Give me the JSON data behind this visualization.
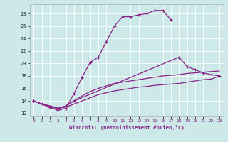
{
  "xlabel": "Windchill (Refroidissement éolien,°C)",
  "bg_color": "#cce8e8",
  "line_color": "#882288",
  "xlim": [
    -0.5,
    23.5
  ],
  "ylim": [
    11.5,
    29.5
  ],
  "yticks": [
    12,
    14,
    16,
    18,
    20,
    22,
    24,
    26,
    28
  ],
  "xticks": [
    0,
    1,
    2,
    3,
    4,
    5,
    6,
    7,
    8,
    9,
    10,
    11,
    12,
    13,
    14,
    15,
    16,
    17,
    18,
    19,
    20,
    21,
    22,
    23
  ],
  "s1x": [
    0,
    1,
    2,
    3,
    4,
    5,
    6,
    7,
    8,
    9,
    10,
    11,
    12,
    13,
    14,
    15,
    16,
    17
  ],
  "s1y": [
    14.0,
    13.5,
    13.0,
    12.5,
    12.8,
    15.2,
    17.8,
    20.2,
    21.0,
    23.5,
    26.0,
    27.5,
    27.5,
    27.8,
    28.0,
    28.5,
    28.5,
    27.0
  ],
  "s2x": [
    0,
    2,
    3,
    4,
    5,
    18,
    19,
    20,
    21,
    22,
    23
  ],
  "s2y": [
    14.0,
    13.0,
    12.8,
    13.2,
    14.0,
    21.0,
    19.5,
    19.0,
    18.5,
    18.2,
    18.0
  ],
  "s3x": [
    0,
    1,
    2,
    3,
    4,
    5,
    6,
    7,
    8,
    9,
    10,
    11,
    12,
    13,
    14,
    15,
    16,
    17,
    18,
    19,
    20,
    21,
    22,
    23
  ],
  "s3y": [
    14.0,
    13.5,
    13.2,
    12.8,
    13.0,
    13.5,
    14.0,
    14.5,
    15.0,
    15.3,
    15.6,
    15.8,
    16.0,
    16.2,
    16.3,
    16.5,
    16.6,
    16.7,
    16.8,
    17.0,
    17.2,
    17.4,
    17.5,
    18.0
  ],
  "s4x": [
    0,
    1,
    2,
    3,
    4,
    5,
    6,
    7,
    8,
    9,
    10,
    11,
    12,
    13,
    14,
    15,
    16,
    17,
    18,
    19,
    20,
    21,
    22,
    23
  ],
  "s4y": [
    14.0,
    13.5,
    13.2,
    12.8,
    13.2,
    14.0,
    14.8,
    15.5,
    16.0,
    16.4,
    16.8,
    17.0,
    17.2,
    17.4,
    17.6,
    17.8,
    18.0,
    18.1,
    18.2,
    18.4,
    18.5,
    18.6,
    18.7,
    18.8
  ]
}
